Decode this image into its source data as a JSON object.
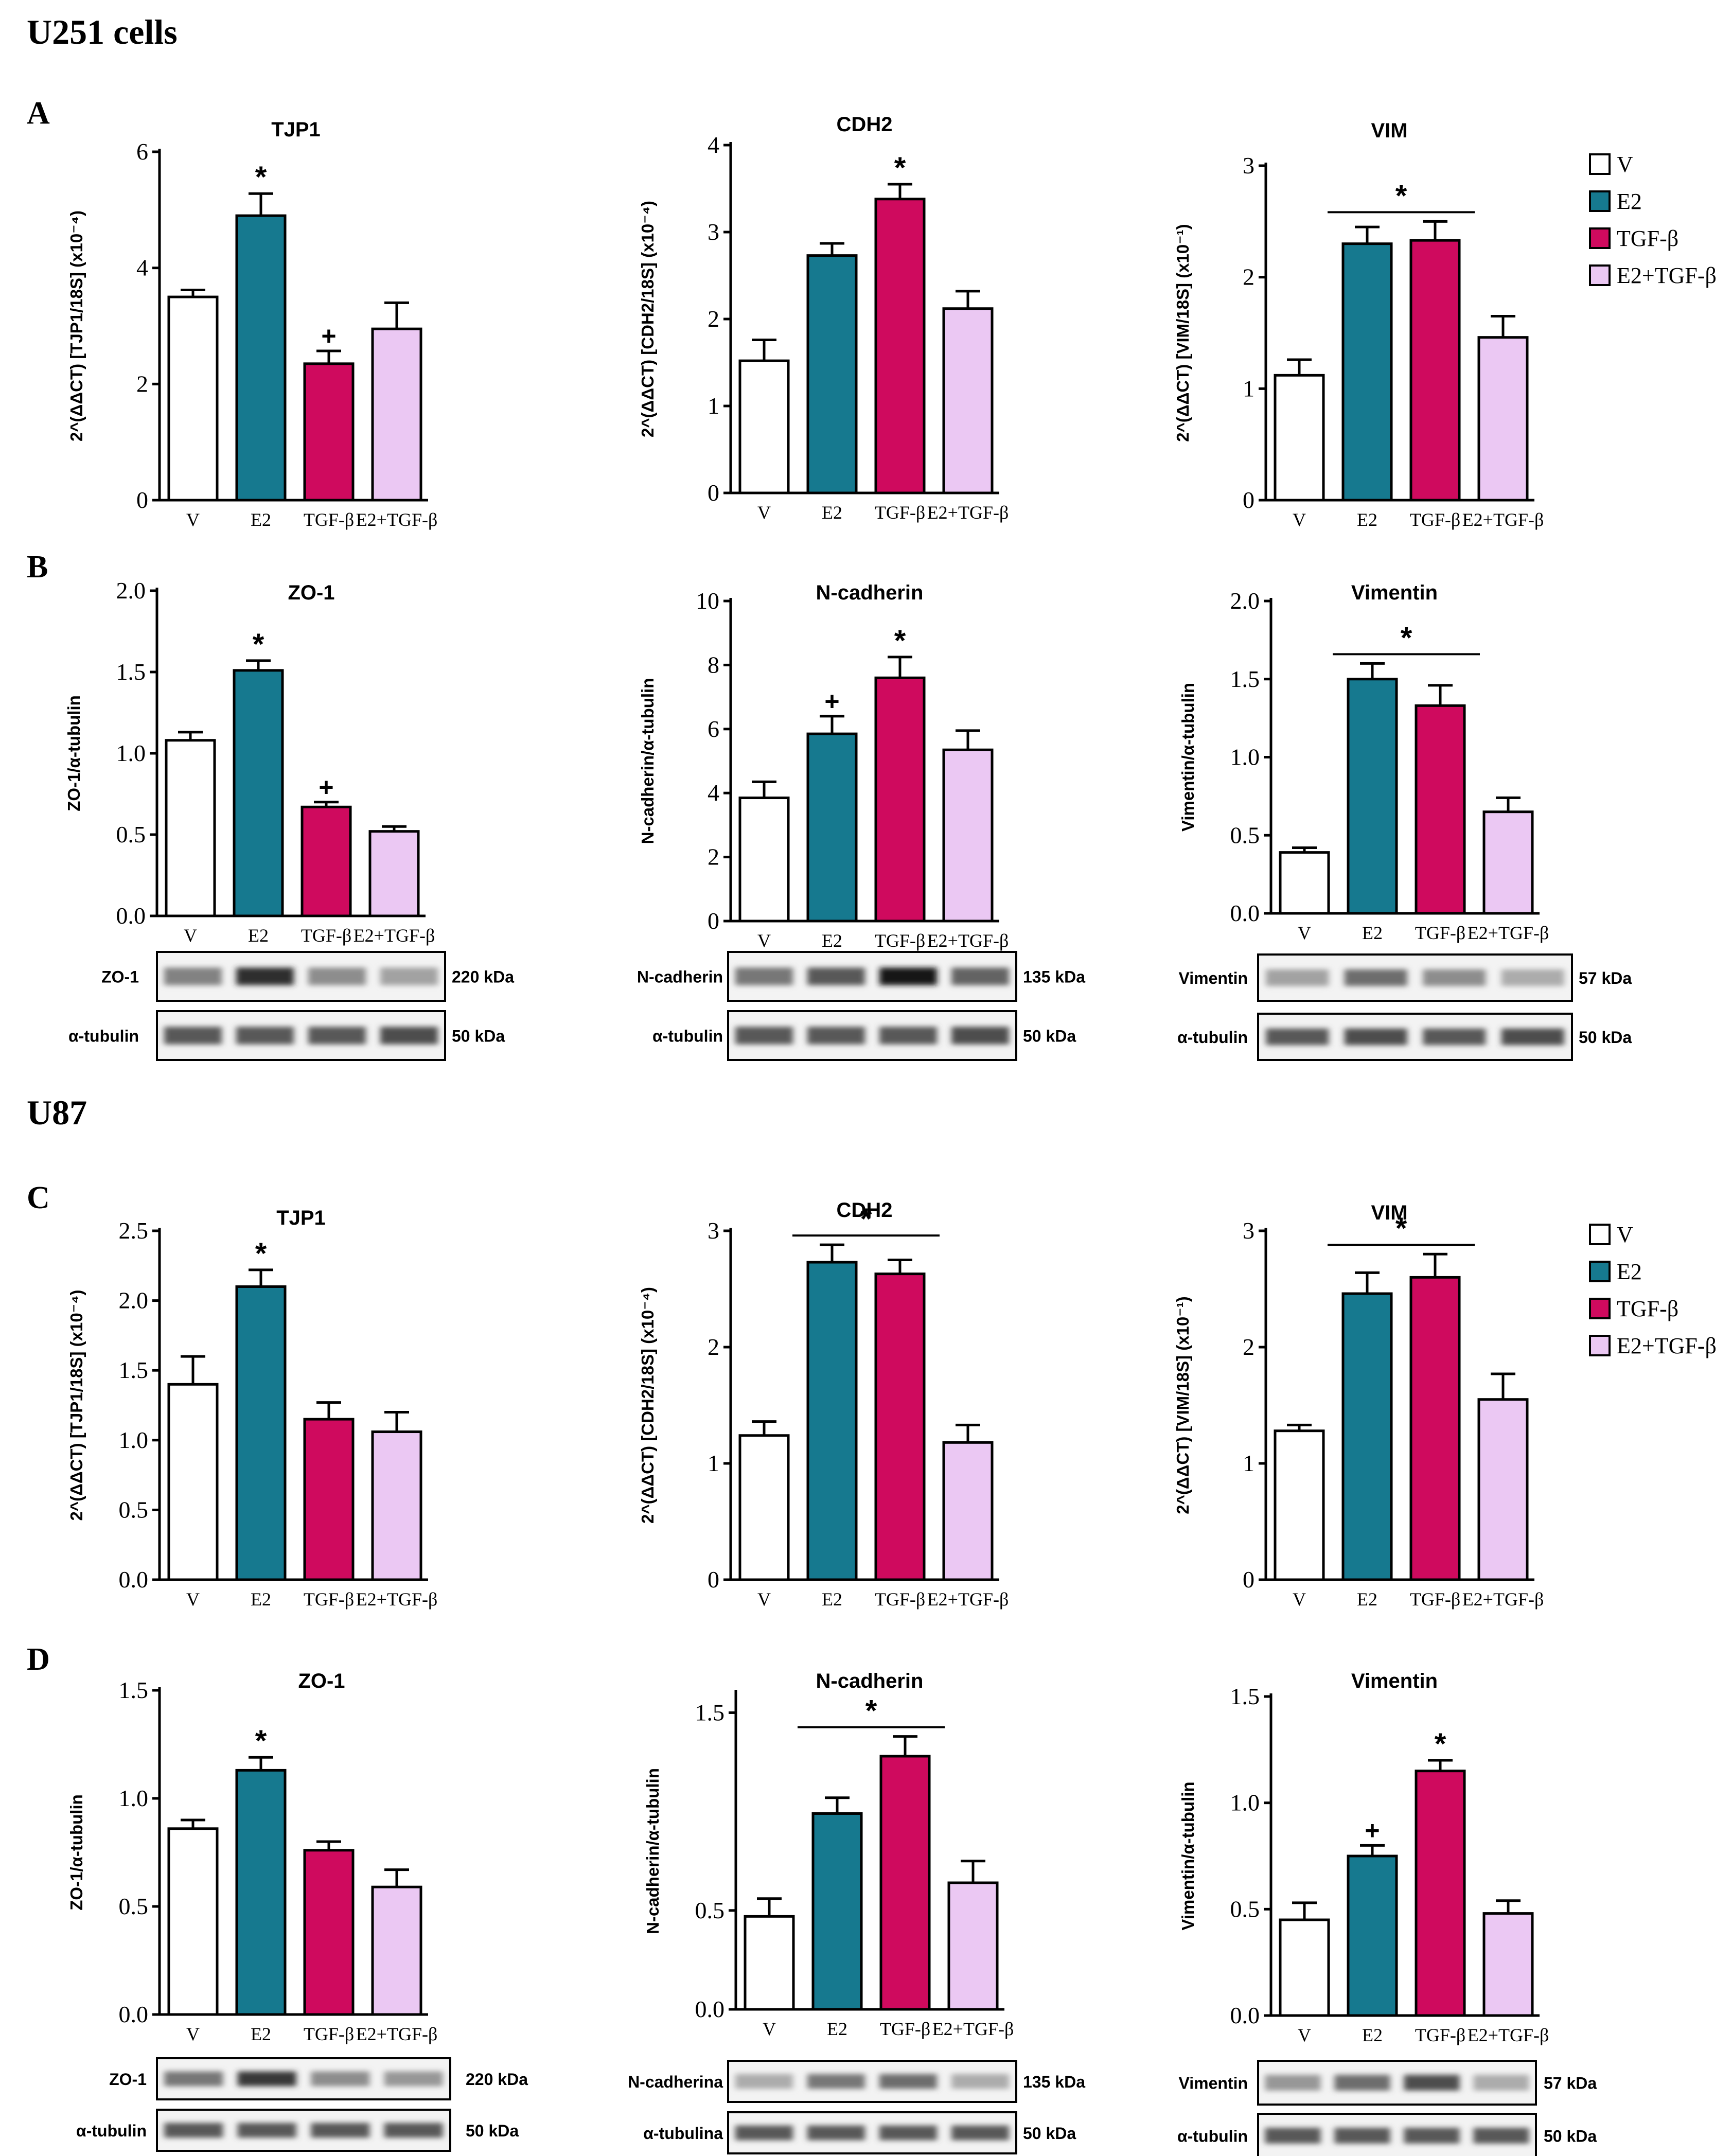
{
  "figure": {
    "section_u251": "U251 cells",
    "section_u87": "U87",
    "panel_letters": [
      "A",
      "B",
      "C",
      "D"
    ]
  },
  "colors": {
    "V": "#ffffff",
    "E2": "#16798f",
    "TGF": "#cf0a5e",
    "E2TGF": "#ebc8f3",
    "axis": "#000000"
  },
  "legend": [
    {
      "label": "V",
      "key": "V"
    },
    {
      "label": "E2",
      "key": "E2"
    },
    {
      "label": "TGF-β",
      "key": "TGF"
    },
    {
      "label": "E2+TGF-β",
      "key": "E2TGF"
    }
  ],
  "chart_data": [
    {
      "id": "A1",
      "panel": "A",
      "type": "bar",
      "title": "TJP1",
      "ylabel": "2^(ΔΔCT) [TJP1/18S] (x10⁻⁴)",
      "ylim": [
        0,
        6
      ],
      "yticks": [
        "0",
        "2",
        "4",
        "6"
      ],
      "tickvals": [
        0,
        2,
        4,
        6
      ],
      "categories": [
        "V",
        "E2",
        "TGF-β",
        "E2+TGF-β"
      ],
      "values": [
        3.5,
        4.9,
        2.35,
        2.95
      ],
      "errors": [
        0.12,
        0.38,
        0.22,
        0.45
      ],
      "marks": [
        "",
        "*",
        "+",
        ""
      ],
      "bracket": null
    },
    {
      "id": "A2",
      "panel": "A",
      "type": "bar",
      "title": "CDH2",
      "ylabel": "2^(ΔΔCT) [CDH2/18S] (x10⁻⁴)",
      "ylim": [
        0,
        4
      ],
      "yticks": [
        "0",
        "1",
        "2",
        "3",
        "4"
      ],
      "tickvals": [
        0,
        1,
        2,
        3,
        4
      ],
      "categories": [
        "V",
        "E2",
        "TGF-β",
        "E2+TGF-β"
      ],
      "values": [
        1.52,
        2.73,
        3.38,
        2.12
      ],
      "errors": [
        0.24,
        0.14,
        0.17,
        0.2
      ],
      "marks": [
        "",
        "",
        "*",
        ""
      ],
      "bracket": null
    },
    {
      "id": "A3",
      "panel": "A",
      "type": "bar",
      "title": "VIM",
      "ylabel": "2^(ΔΔCT) [VIM/18S] (x10⁻¹)",
      "ylim": [
        0,
        3
      ],
      "yticks": [
        "0",
        "1",
        "2",
        "3"
      ],
      "tickvals": [
        0,
        1,
        2,
        3
      ],
      "categories": [
        "V",
        "E2",
        "TGF-β",
        "E2+TGF-β"
      ],
      "values": [
        1.12,
        2.3,
        2.33,
        1.46
      ],
      "errors": [
        0.14,
        0.15,
        0.17,
        0.19
      ],
      "marks": [
        "",
        "",
        "",
        ""
      ],
      "bracket": {
        "from": 1,
        "to": 2,
        "label": "*"
      }
    },
    {
      "id": "B1",
      "panel": "B",
      "type": "bar",
      "title": "ZO-1",
      "ylabel": "ZO-1/α-tubulin",
      "ylim": [
        0,
        2
      ],
      "yticks": [
        "0.0",
        "0.5",
        "1.0",
        "1.5",
        "2.0"
      ],
      "tickvals": [
        0,
        0.5,
        1,
        1.5,
        2
      ],
      "categories": [
        "V",
        "E2",
        "TGF-β",
        "E2+TGF-β"
      ],
      "values": [
        1.08,
        1.51,
        0.67,
        0.52
      ],
      "errors": [
        0.05,
        0.06,
        0.03,
        0.03
      ],
      "marks": [
        "",
        "*",
        "+",
        ""
      ],
      "bracket": null
    },
    {
      "id": "B2",
      "panel": "B",
      "type": "bar",
      "title": "N-cadherin",
      "ylabel": "N-cadherin/α-tubulin",
      "ylim": [
        0,
        10
      ],
      "yticks": [
        "0",
        "2",
        "4",
        "6",
        "8",
        "10"
      ],
      "tickvals": [
        0,
        2,
        4,
        6,
        8,
        10
      ],
      "categories": [
        "V",
        "E2",
        "TGF-β",
        "E2+TGF-β"
      ],
      "values": [
        3.85,
        5.85,
        7.6,
        5.35
      ],
      "errors": [
        0.5,
        0.55,
        0.65,
        0.6
      ],
      "marks": [
        "",
        "+",
        "*",
        ""
      ],
      "bracket": null
    },
    {
      "id": "B3",
      "panel": "B",
      "type": "bar",
      "title": "Vimentin",
      "ylabel": "Vimentin/α-tubulin",
      "ylim": [
        0,
        2
      ],
      "yticks": [
        "0.0",
        "0.5",
        "1.0",
        "1.5",
        "2.0"
      ],
      "tickvals": [
        0,
        0.5,
        1,
        1.5,
        2
      ],
      "categories": [
        "V",
        "E2",
        "TGF-β",
        "E2+TGF-β"
      ],
      "values": [
        0.39,
        1.5,
        1.33,
        0.65
      ],
      "errors": [
        0.03,
        0.1,
        0.13,
        0.09
      ],
      "marks": [
        "",
        "",
        "",
        ""
      ],
      "bracket": {
        "from": 1,
        "to": 2,
        "label": "*"
      }
    },
    {
      "id": "C1",
      "panel": "C",
      "type": "bar",
      "title": "TJP1",
      "ylabel": "2^(ΔΔCT) [TJP1/18S] (x10⁻⁴)",
      "ylim": [
        0,
        2.5
      ],
      "yticks": [
        "0.0",
        "0.5",
        "1.0",
        "1.5",
        "2.0",
        "2.5"
      ],
      "tickvals": [
        0,
        0.5,
        1,
        1.5,
        2,
        2.5
      ],
      "categories": [
        "V",
        "E2",
        "TGF-β",
        "E2+TGF-β"
      ],
      "values": [
        1.4,
        2.1,
        1.15,
        1.06
      ],
      "errors": [
        0.2,
        0.12,
        0.12,
        0.14
      ],
      "marks": [
        "",
        "*",
        "",
        ""
      ],
      "bracket": null
    },
    {
      "id": "C2",
      "panel": "C",
      "type": "bar",
      "title": "CDH2",
      "ylabel": "2^(ΔΔCT) [CDH2/18S] (x10⁻⁴)",
      "ylim": [
        0,
        3
      ],
      "yticks": [
        "0",
        "1",
        "2",
        "3"
      ],
      "tickvals": [
        0,
        1,
        2,
        3
      ],
      "categories": [
        "V",
        "E2",
        "TGF-β",
        "E2+TGF-β"
      ],
      "values": [
        1.24,
        2.73,
        2.63,
        1.18
      ],
      "errors": [
        0.12,
        0.15,
        0.12,
        0.15
      ],
      "marks": [
        "",
        "",
        "",
        ""
      ],
      "bracket": {
        "from": 1,
        "to": 2,
        "label": "*"
      }
    },
    {
      "id": "C3",
      "panel": "C",
      "type": "bar",
      "title": "VIM",
      "ylabel": "2^(ΔΔCT) [VIM/18S] (x10⁻¹)",
      "ylim": [
        0,
        3
      ],
      "yticks": [
        "0",
        "1",
        "2",
        "3"
      ],
      "tickvals": [
        0,
        1,
        2,
        3
      ],
      "categories": [
        "V",
        "E2",
        "TGF-β",
        "E2+TGF-β"
      ],
      "values": [
        1.28,
        2.46,
        2.6,
        1.55
      ],
      "errors": [
        0.05,
        0.18,
        0.2,
        0.22
      ],
      "marks": [
        "",
        "",
        "",
        ""
      ],
      "bracket": {
        "from": 1,
        "to": 2,
        "label": "*"
      }
    },
    {
      "id": "D1",
      "panel": "D",
      "type": "bar",
      "title": "ZO-1",
      "ylabel": "ZO-1/α-tubulin",
      "ylim": [
        0,
        1.5
      ],
      "yticks": [
        "0.0",
        "0.5",
        "1.0",
        "1.5"
      ],
      "tickvals": [
        0,
        0.5,
        1,
        1.5
      ],
      "categories": [
        "V",
        "E2",
        "TGF-β",
        "E2+TGF-β"
      ],
      "values": [
        0.86,
        1.13,
        0.76,
        0.59
      ],
      "errors": [
        0.04,
        0.06,
        0.04,
        0.08
      ],
      "marks": [
        "",
        "*",
        "",
        ""
      ],
      "bracket": null
    },
    {
      "id": "D2",
      "panel": "D",
      "type": "bar",
      "title": "N-cadherin",
      "ylabel": "N-cadherin/α-tubulin",
      "ylim": [
        0,
        1.6
      ],
      "yticks": [
        "0.0",
        "0.5",
        "1.5"
      ],
      "tickvals": [
        0,
        0.5,
        1.5
      ],
      "categories": [
        "V",
        "E2",
        "TGF-β",
        "E2+TGF-β"
      ],
      "values": [
        0.47,
        0.99,
        1.28,
        0.64
      ],
      "errors": [
        0.09,
        0.08,
        0.1,
        0.11
      ],
      "marks": [
        "",
        "",
        "",
        ""
      ],
      "bracket": {
        "from": 1,
        "to": 2,
        "label": "*"
      }
    },
    {
      "id": "D3",
      "panel": "D",
      "type": "bar",
      "title": "Vimentin",
      "ylabel": "Vimentin/α-tubulin",
      "ylim": [
        0,
        1.5
      ],
      "yticks": [
        "0.0",
        "0.5",
        "1.0",
        "1.5"
      ],
      "tickvals": [
        0,
        0.5,
        1,
        1.5
      ],
      "categories": [
        "V",
        "E2",
        "TGF-β",
        "E2+TGF-β"
      ],
      "values": [
        0.45,
        0.75,
        1.15,
        0.48
      ],
      "errors": [
        0.08,
        0.05,
        0.05,
        0.06
      ],
      "marks": [
        "",
        "+",
        "*",
        ""
      ],
      "bracket": null
    }
  ],
  "blots": [
    {
      "id": "blotB1",
      "rows": [
        {
          "label": "ZO-1",
          "kda": "220 kDa",
          "bands": [
            0.5,
            0.9,
            0.45,
            0.35
          ]
        },
        {
          "label": "α-tubulin",
          "kda": "50 kDa",
          "bands": [
            0.7,
            0.7,
            0.7,
            0.75
          ]
        }
      ]
    },
    {
      "id": "blotB2",
      "rows": [
        {
          "label": "N-cadherin",
          "kda": "135 kDa",
          "bands": [
            0.55,
            0.7,
            1.0,
            0.65
          ]
        },
        {
          "label": "α-tubulin",
          "kda": "50 kDa",
          "bands": [
            0.7,
            0.7,
            0.7,
            0.75
          ]
        }
      ]
    },
    {
      "id": "blotB3",
      "rows": [
        {
          "label": "Vimentin",
          "kda": "57 kDa",
          "bands": [
            0.35,
            0.6,
            0.45,
            0.3
          ]
        },
        {
          "label": "α-tubulin",
          "kda": "50 kDa",
          "bands": [
            0.7,
            0.75,
            0.7,
            0.75
          ]
        }
      ]
    },
    {
      "id": "blotD1",
      "rows": [
        {
          "label": "ZO-1",
          "kda": "220 kDa",
          "bands": [
            0.55,
            0.85,
            0.45,
            0.4
          ]
        },
        {
          "label": "α-tubulin",
          "kda": "50 kDa",
          "bands": [
            0.7,
            0.7,
            0.7,
            0.7
          ]
        }
      ]
    },
    {
      "id": "blotD2",
      "rows": [
        {
          "label": "N-cadherina",
          "kda": "135 kDa",
          "bands": [
            0.3,
            0.55,
            0.6,
            0.3
          ]
        },
        {
          "label": "α-tubulina",
          "kda": "50 kDa",
          "bands": [
            0.7,
            0.7,
            0.7,
            0.7
          ]
        }
      ]
    },
    {
      "id": "blotD3",
      "rows": [
        {
          "label": "Vimentin",
          "kda": "57 kDa",
          "bands": [
            0.4,
            0.6,
            0.75,
            0.3
          ]
        },
        {
          "label": "α-tubulin",
          "kda": "50 kDa",
          "bands": [
            0.7,
            0.7,
            0.7,
            0.7
          ]
        }
      ]
    }
  ]
}
